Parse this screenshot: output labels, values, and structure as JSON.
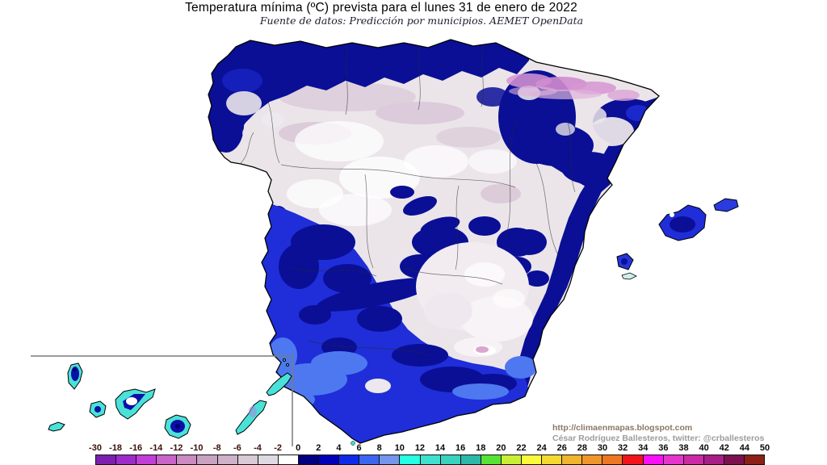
{
  "title": "Temperatura mínima (ºC) prevista para el lunes 31 de enero de 2022",
  "subtitle": "Fuente de datos: Predicción por municipios. AEMET OpenData",
  "attribution": {
    "url": "http://climaenmapas.blogspot.com",
    "author": "César Rodríguez Ballesteros, twitter: @crballesteros"
  },
  "colorbar": {
    "unit": "ºC",
    "boundaries": [
      "-30",
      "-18",
      "-16",
      "-14",
      "-12",
      "-10",
      "-8",
      "-6",
      "-4",
      "-2",
      "0",
      "2",
      "4",
      "6",
      "8",
      "10",
      "12",
      "14",
      "16",
      "18",
      "20",
      "22",
      "24",
      "26",
      "28",
      "30",
      "32",
      "34",
      "36",
      "38",
      "40",
      "42",
      "44",
      "50"
    ],
    "colors": [
      "#7C1FB0",
      "#9D2BCC",
      "#C13ED8",
      "#C964C9",
      "#C98BC0",
      "#C9A2C2",
      "#CDB2C9",
      "#D8CBD5",
      "#DEDAE2",
      "#FFFFFF",
      "#000080",
      "#0000B8",
      "#0D2BE8",
      "#3C66F0",
      "#7396EC",
      "#25FFE2",
      "#3EE0CE",
      "#38D2BF",
      "#2CB8A8",
      "#55E335",
      "#C9EF35",
      "#FAFA3A",
      "#F4D92F",
      "#F0B42D",
      "#EF962A",
      "#EE7722",
      "#F2131B",
      "#FB10FB",
      "#E634CE",
      "#CC29A6",
      "#A81E88",
      "#7C1150",
      "#8B2015"
    ],
    "label_color_negative": "#3A1208",
    "label_color_positive": "#0A0A0A"
  },
  "chart_data": {
    "type": "heatmap",
    "title": "Temperatura mínima (ºC) prevista para el lunes 31 de enero de 2022",
    "subtitle": "Fuente de datos: Predicción por municipios. AEMET OpenData",
    "unit": "ºC",
    "legend_position": "bottom",
    "legend": {
      "boundaries": [
        -30,
        -18,
        -16,
        -14,
        -12,
        -10,
        -8,
        -6,
        -4,
        -2,
        0,
        2,
        4,
        6,
        8,
        10,
        12,
        14,
        16,
        18,
        20,
        22,
        24,
        26,
        28,
        30,
        32,
        34,
        36,
        38,
        40,
        42,
        44,
        50
      ],
      "colors": [
        "#7C1FB0",
        "#9D2BCC",
        "#C13ED8",
        "#C964C9",
        "#C98BC0",
        "#C9A2C2",
        "#CDB2C9",
        "#D8CBD5",
        "#DEDAE2",
        "#FFFFFF",
        "#000080",
        "#0000B8",
        "#0D2BE8",
        "#3C66F0",
        "#7396EC",
        "#25FFE2",
        "#3EE0CE",
        "#38D2BF",
        "#2CB8A8",
        "#55E335",
        "#C9EF35",
        "#FAFA3A",
        "#F4D92F",
        "#F0B42D",
        "#EF962A",
        "#EE7722",
        "#F2131B",
        "#FB10FB",
        "#E634CE",
        "#CC29A6",
        "#A81E88",
        "#7C1150",
        "#8B2015"
      ]
    }
  }
}
